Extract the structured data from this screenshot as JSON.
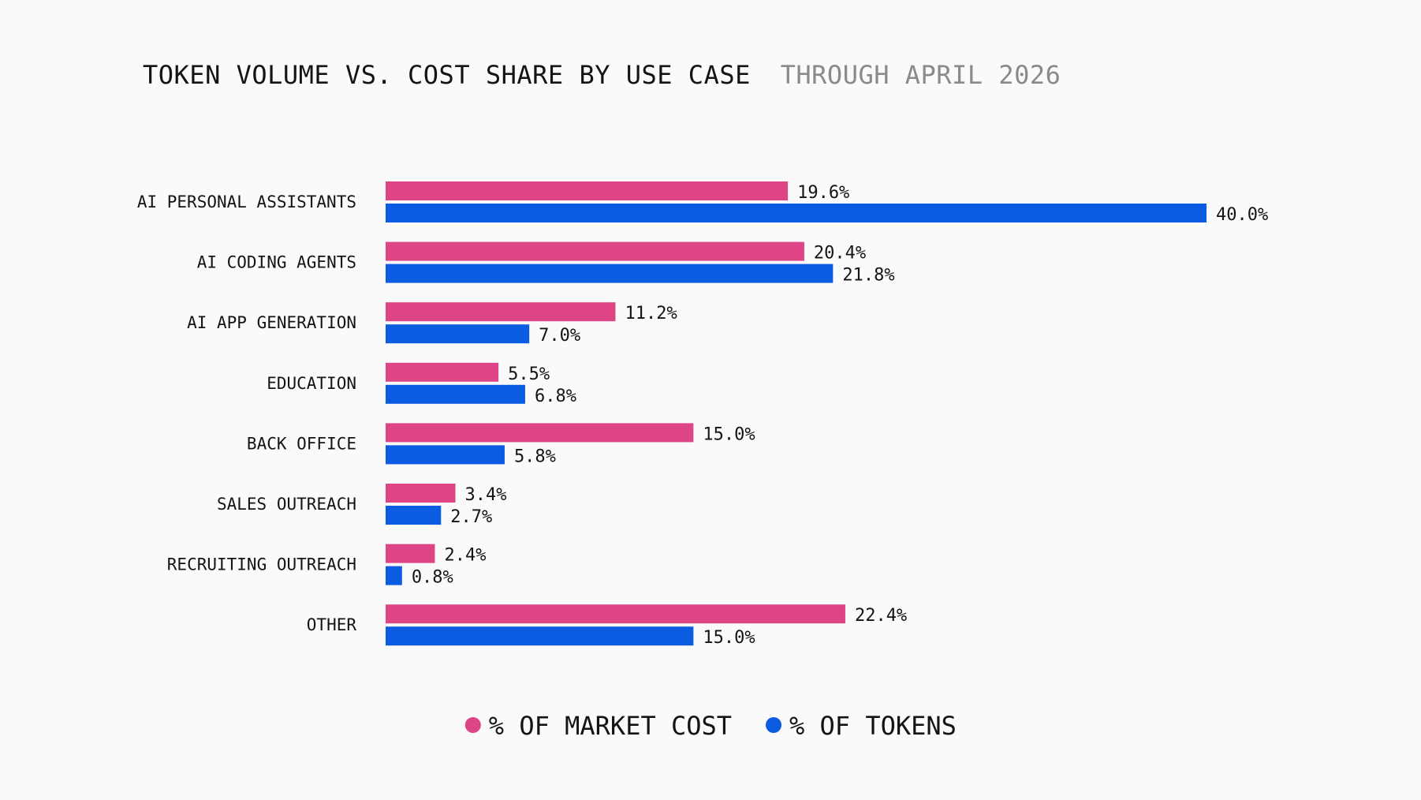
{
  "chart_data": {
    "type": "bar",
    "orientation": "horizontal",
    "title": "TOKEN VOLUME VS. COST SHARE BY USE CASE",
    "subtitle": "THROUGH APRIL 2026",
    "categories": [
      "AI PERSONAL ASSISTANTS",
      "AI CODING AGENTS",
      "AI APP GENERATION",
      "EDUCATION",
      "BACK OFFICE",
      "SALES OUTREACH",
      "RECRUITING OUTREACH",
      "OTHER"
    ],
    "series": [
      {
        "name": "% OF MARKET COST",
        "color": "#dd4586",
        "values": [
          19.6,
          20.4,
          11.2,
          5.5,
          15.0,
          3.4,
          2.4,
          22.4
        ],
        "labels": [
          "19.6%",
          "20.4%",
          "11.2%",
          "5.5%",
          "15.0%",
          "3.4%",
          "2.4%",
          "22.4%"
        ]
      },
      {
        "name": "% OF TOKENS",
        "color": "#0b5ce0",
        "values": [
          40.0,
          21.8,
          7.0,
          6.8,
          5.8,
          2.7,
          0.8,
          15.0
        ],
        "labels": [
          "40.0%",
          "21.8%",
          "7.0%",
          "6.8%",
          "5.8%",
          "2.7%",
          "0.8%",
          "15.0%"
        ]
      }
    ],
    "xlim": [
      0,
      40
    ],
    "grid": false,
    "legend_position": "bottom-center"
  }
}
